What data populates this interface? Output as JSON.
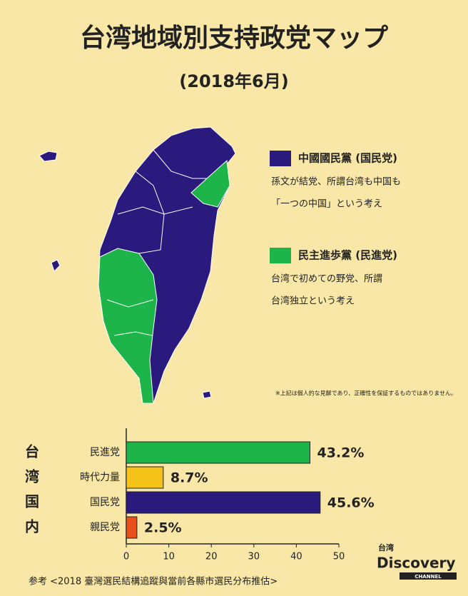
{
  "title": "台湾地域別支持政党マップ",
  "subtitle": "(2018年6月)",
  "legend": [
    {
      "name": "中國國民黨 (国民党)",
      "color": "#2a1a7e",
      "lines": [
        "孫文が結党、所謂台湾も中国も",
        "「一つの中国」という考え"
      ]
    },
    {
      "name": "民主進歩黨 (民進党)",
      "color": "#1db54a",
      "lines": [
        "台湾で初めての野党、所謂",
        "台湾独立という考え"
      ]
    }
  ],
  "note": "※上記は個人的な見解であり、正確性を保証するものではありません。",
  "side_label": [
    "台",
    "湾",
    "国",
    "内"
  ],
  "chart_data": {
    "type": "hbar",
    "categories": [
      "民進党",
      "時代力量",
      "国民党",
      "親民党"
    ],
    "values": [
      43.2,
      8.7,
      45.6,
      2.5
    ],
    "value_labels": [
      "43.2%",
      "8.7%",
      "45.6%",
      "2.5%"
    ],
    "colors": [
      "#1db54a",
      "#f5c21a",
      "#2a1a7e",
      "#e8501c"
    ],
    "xlim": [
      0,
      50
    ],
    "xticks": [
      0,
      10,
      20,
      30,
      40,
      50
    ]
  },
  "source": "参考 <2018 臺灣選民結構追蹤與當前各縣市選民分布推估>",
  "logo": {
    "top": "台湾",
    "main": "Discovery",
    "sub": "CHANNEL"
  }
}
